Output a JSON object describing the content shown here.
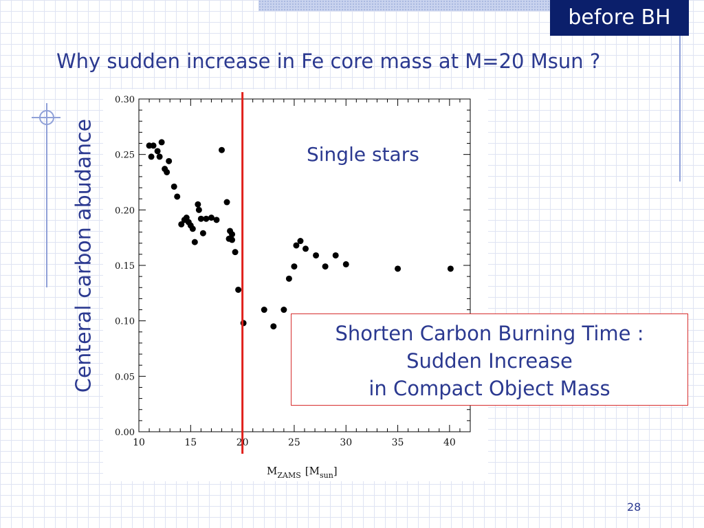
{
  "slide": {
    "tag": "before BH",
    "title": "Why sudden increase in Fe core mass at M=20 Msun ?",
    "page_number": "28",
    "callout": {
      "line1": "Shorten Carbon Burning Time :",
      "line2": "Sudden Increase",
      "line3": "in Compact Object Mass"
    },
    "colors": {
      "accent_text": "#2b3990",
      "marker_line": "#e0201b",
      "tag_bg": "#0b1f6b"
    }
  },
  "chart_data": {
    "type": "scatter",
    "title": "",
    "annotation": "Single stars",
    "ylabel": "Centeral carbon abudance",
    "xlabel": {
      "main": "M",
      "sub": "ZAMS",
      "unit_main": "[M",
      "unit_sub": "sun",
      "unit_close": "]"
    },
    "xlim": [
      10,
      42
    ],
    "ylim": [
      0,
      0.3
    ],
    "xticks": [
      10,
      15,
      20,
      25,
      30,
      35,
      40
    ],
    "xtick_labels": [
      "10",
      "15",
      "20",
      "25",
      "30",
      "35",
      "40"
    ],
    "yticks": [
      0,
      0.05,
      0.1,
      0.15,
      0.2,
      0.25,
      0.3
    ],
    "ytick_labels": [
      "0.00",
      "0.05",
      "0.10",
      "0.15",
      "0.20",
      "0.25",
      "0.30"
    ],
    "vertical_marker_x": 20,
    "grid": false,
    "points": [
      [
        11.0,
        0.258
      ],
      [
        11.4,
        0.258
      ],
      [
        11.2,
        0.248
      ],
      [
        11.8,
        0.253
      ],
      [
        12.0,
        0.248
      ],
      [
        12.2,
        0.261
      ],
      [
        12.5,
        0.237
      ],
      [
        12.7,
        0.234
      ],
      [
        12.9,
        0.244
      ],
      [
        13.4,
        0.221
      ],
      [
        13.7,
        0.212
      ],
      [
        14.1,
        0.187
      ],
      [
        14.4,
        0.191
      ],
      [
        14.6,
        0.193
      ],
      [
        14.8,
        0.189
      ],
      [
        15.0,
        0.186
      ],
      [
        15.2,
        0.183
      ],
      [
        15.4,
        0.171
      ],
      [
        15.7,
        0.205
      ],
      [
        15.8,
        0.2
      ],
      [
        16.0,
        0.192
      ],
      [
        16.2,
        0.179
      ],
      [
        16.5,
        0.192
      ],
      [
        17.0,
        0.193
      ],
      [
        17.5,
        0.191
      ],
      [
        18.0,
        0.254
      ],
      [
        18.5,
        0.207
      ],
      [
        18.7,
        0.174
      ],
      [
        18.8,
        0.181
      ],
      [
        19.0,
        0.178
      ],
      [
        19.0,
        0.173
      ],
      [
        19.3,
        0.162
      ],
      [
        19.6,
        0.128
      ],
      [
        20.1,
        0.098
      ],
      [
        22.1,
        0.11
      ],
      [
        23.0,
        0.095
      ],
      [
        24.0,
        0.11
      ],
      [
        24.5,
        0.138
      ],
      [
        25.0,
        0.149
      ],
      [
        25.2,
        0.168
      ],
      [
        25.6,
        0.172
      ],
      [
        26.1,
        0.165
      ],
      [
        27.1,
        0.159
      ],
      [
        28.0,
        0.149
      ],
      [
        29.0,
        0.159
      ],
      [
        30.0,
        0.151
      ],
      [
        35.0,
        0.147
      ],
      [
        40.1,
        0.147
      ]
    ]
  }
}
